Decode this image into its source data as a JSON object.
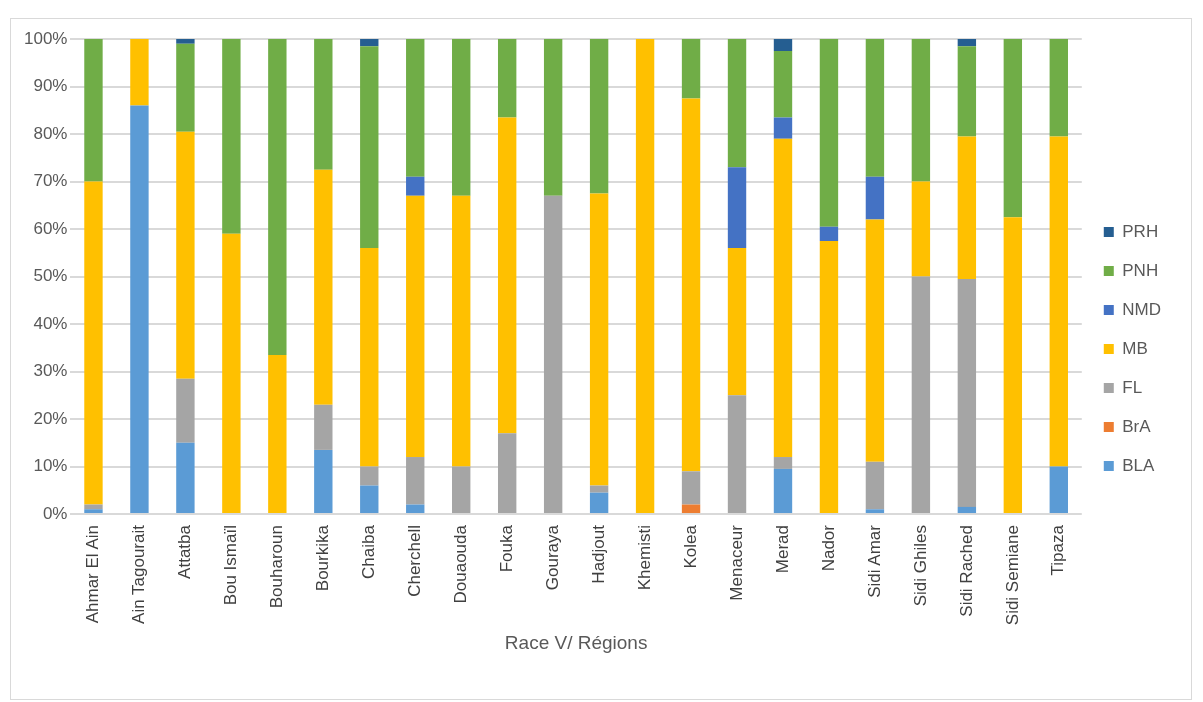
{
  "chart_data": {
    "type": "bar",
    "stacked": true,
    "xlabel": "Race V/ Régions",
    "categories": [
      "Ahmar El Ain",
      "Ain Tagourait",
      "Attatba",
      "Bou Ismaïl",
      "Bouharoun",
      "Bourkika",
      "Chaiba",
      "Cherchell",
      "Douaouda",
      "Fouka",
      "Gouraya",
      "Hadjout",
      "Khemisti",
      "Kolea",
      "Menaceur",
      "Merad",
      "Nador",
      "Sidi Amar",
      "Sidi Ghiles",
      "Sidi Rached",
      "Sidi Semiane",
      "Tipaza"
    ],
    "series": [
      {
        "name": "BLA",
        "color": "#5b9bd5",
        "values": [
          1,
          86,
          15,
          0,
          0,
          13.5,
          6,
          2,
          0,
          0,
          0,
          4.5,
          0,
          0,
          0,
          9.5,
          0,
          1,
          0,
          1.5,
          0,
          10
        ]
      },
      {
        "name": "BrA",
        "color": "#ed7d31",
        "values": [
          0,
          0,
          0,
          0,
          0,
          0,
          0,
          0,
          0,
          0,
          0,
          0,
          0,
          2,
          0,
          0,
          0,
          0,
          0,
          0,
          0,
          0
        ]
      },
      {
        "name": "FL",
        "color": "#a5a5a5",
        "values": [
          1,
          0,
          13.5,
          0,
          0,
          9.5,
          4,
          10,
          10,
          17,
          67,
          1.5,
          0,
          7,
          25,
          2.5,
          0,
          10,
          50,
          48,
          0,
          0
        ]
      },
      {
        "name": "MB",
        "color": "#ffc000",
        "values": [
          68,
          14,
          52,
          59,
          33.5,
          49.5,
          46,
          55,
          57,
          66.5,
          0,
          61.5,
          100,
          78.5,
          31,
          67,
          57.5,
          51,
          20,
          30,
          62.5,
          69.5
        ]
      },
      {
        "name": "NMD",
        "color": "#4472c4",
        "values": [
          0,
          0,
          0,
          0,
          0,
          0,
          0,
          4,
          0,
          0,
          0,
          0,
          0,
          0,
          17,
          4.5,
          3,
          9,
          0,
          0,
          0,
          0
        ]
      },
      {
        "name": "PNH",
        "color": "#70ad47",
        "values": [
          30,
          0,
          18.5,
          41,
          66.5,
          27.5,
          42.5,
          29,
          33,
          16.5,
          33,
          32.5,
          0,
          12.5,
          27,
          14,
          39.5,
          29,
          30,
          19,
          37.5,
          20.5
        ]
      },
      {
        "name": "PRH",
        "color": "#255e91",
        "values": [
          0,
          0,
          1,
          0,
          0,
          0,
          1.5,
          0,
          0,
          0,
          0,
          0,
          0,
          0,
          0,
          2.5,
          0,
          0,
          0,
          1.5,
          0,
          0
        ]
      }
    ],
    "ylim": [
      0,
      100
    ],
    "yticks": [
      {
        "value": 0,
        "label": "0%"
      },
      {
        "value": 10,
        "label": "10%"
      },
      {
        "value": 20,
        "label": "20%"
      },
      {
        "value": 30,
        "label": "30%"
      },
      {
        "value": 40,
        "label": "40%"
      },
      {
        "value": 50,
        "label": "50%"
      },
      {
        "value": 60,
        "label": "60%"
      },
      {
        "value": 70,
        "label": "70%"
      },
      {
        "value": 80,
        "label": "80%"
      },
      {
        "value": 90,
        "label": "90%"
      },
      {
        "value": 100,
        "label": "100%"
      }
    ],
    "grid": "y",
    "legend": "right"
  }
}
